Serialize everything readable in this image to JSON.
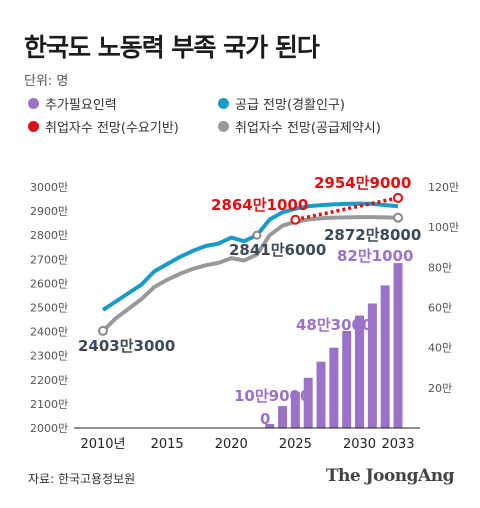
{
  "header": {
    "title": "한국도 노동력 부족 국가 된다",
    "unit": "단위: 명"
  },
  "legend": [
    {
      "label": "추가필요인력",
      "color": "#9b72c9"
    },
    {
      "label": "공급 전망(경활인구)",
      "color": "#1a9ac9"
    },
    {
      "label": "취업자수 전망(수요기반)",
      "color": "#e01010"
    },
    {
      "label": "취업자수 전망(공급제약시)",
      "color": "#999999"
    }
  ],
  "chart_data": {
    "type": "line+bar",
    "x_ticks": [
      "2010년",
      "2015",
      "2020",
      "2025",
      "2030",
      "2033"
    ],
    "left_axis": {
      "ticks": [
        "3000만",
        "2900만",
        "2800만",
        "2700만",
        "2600만",
        "2500만",
        "2400만",
        "2300만",
        "2200만",
        "2100만",
        "2000만"
      ],
      "range": [
        20000000,
        30000000
      ]
    },
    "right_axis": {
      "ticks": [
        "120만",
        "100만",
        "80만",
        "60만",
        "40만",
        "20만"
      ],
      "range": [
        0,
        1200000
      ]
    },
    "supply": {
      "name": "공급 전망(경활인구)",
      "color": "#1a9ac9",
      "points": [
        [
          2010,
          24900000
        ],
        [
          2011,
          25250000
        ],
        [
          2012,
          25600000
        ],
        [
          2013,
          25950000
        ],
        [
          2014,
          26500000
        ],
        [
          2015,
          26800000
        ],
        [
          2016,
          27100000
        ],
        [
          2017,
          27350000
        ],
        [
          2018,
          27550000
        ],
        [
          2019,
          27650000
        ],
        [
          2020,
          27900000
        ],
        [
          2021,
          27750000
        ],
        [
          2022,
          28000000
        ],
        [
          2023,
          28650000
        ],
        [
          2024,
          28950000
        ],
        [
          2025,
          29100000
        ],
        [
          2026,
          29200000
        ],
        [
          2027,
          29250000
        ],
        [
          2028,
          29280000
        ],
        [
          2029,
          29300000
        ],
        [
          2030,
          29310000
        ],
        [
          2031,
          29300000
        ],
        [
          2032,
          29250000
        ],
        [
          2033,
          29200000
        ]
      ]
    },
    "constrained": {
      "name": "취업자수 전망(공급제약시)",
      "color": "#999999",
      "points": [
        [
          2010,
          24030000
        ],
        [
          2011,
          24550000
        ],
        [
          2012,
          24950000
        ],
        [
          2013,
          25350000
        ],
        [
          2014,
          25850000
        ],
        [
          2015,
          26150000
        ],
        [
          2016,
          26400000
        ],
        [
          2017,
          26600000
        ],
        [
          2018,
          26750000
        ],
        [
          2019,
          26850000
        ],
        [
          2020,
          27050000
        ],
        [
          2021,
          26950000
        ],
        [
          2022,
          27200000
        ],
        [
          2023,
          28000000
        ],
        [
          2024,
          28400000
        ],
        [
          2025,
          28550000
        ],
        [
          2026,
          28650000
        ],
        [
          2027,
          28700000
        ],
        [
          2028,
          28730000
        ],
        [
          2029,
          28740000
        ],
        [
          2030,
          28750000
        ],
        [
          2031,
          28750000
        ],
        [
          2032,
          28740000
        ],
        [
          2033,
          28728000
        ]
      ]
    },
    "demand": {
      "name": "취업자수 전망(수요기반)",
      "color": "#e01010",
      "points": [
        [
          2025,
          28641000
        ],
        [
          2033,
          29549000
        ]
      ]
    },
    "bars": {
      "name": "추가필요인력",
      "color": "#9b72c9",
      "x": [
        2023,
        2024,
        2025,
        2026,
        2027,
        2028,
        2029,
        2030,
        2031,
        2032,
        2033
      ],
      "values": [
        0,
        109000,
        180000,
        250000,
        330000,
        400000,
        483000,
        560000,
        620000,
        710000,
        821000
      ]
    },
    "annotations": {
      "a2403": "2403만3000",
      "a2864": "2864만1000",
      "a2954": "2954만9000",
      "a2841": "2841만6000",
      "a2872": "2872만8000",
      "a82": "82만1000",
      "a48": "48만3000",
      "a10": "10만9000",
      "a0": "0"
    }
  },
  "footer": {
    "source": "자료: 한국고용정보원",
    "logo": "The JoongAng"
  }
}
